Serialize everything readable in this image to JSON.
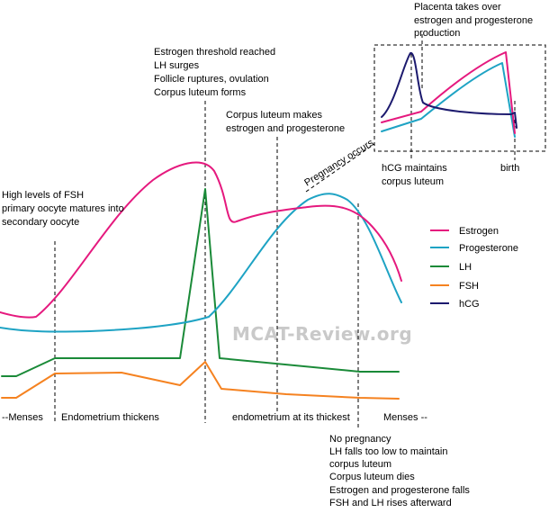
{
  "colors": {
    "estrogen": "#e5197e",
    "progesterone": "#1ea3c4",
    "lh": "#1a8a38",
    "fsh": "#f58220",
    "hcg": "#1c1a6e"
  },
  "annotations": {
    "fsh_high": [
      "High levels of FSH",
      "primary oocyte matures into",
      "secondary oocyte"
    ],
    "ovulation": [
      "Estrogen threshold reached",
      "LH surges",
      "Follicle ruptures, ovulation",
      "Corpus luteum forms"
    ],
    "corpus_luteum": [
      "Corpus luteum makes",
      "estrogen and progesterone"
    ],
    "placenta": [
      "Placenta takes over",
      "estrogen and progesterone",
      "production"
    ],
    "pregnancy_occurs": "Pregnancy occurs",
    "hcg_maintains": [
      "hCG maintains",
      "corpus luteum"
    ],
    "birth": "birth",
    "no_pregnancy": [
      "No pregnancy",
      "LH falls too low to maintain",
      "corpus luteum",
      "Corpus luteum dies",
      "Estrogen and progesterone falls",
      "FSH and LH rises afterward"
    ]
  },
  "phases": {
    "menses_start": "--Menses",
    "endometrium_thickens": "Endometrium thickens",
    "endometrium_thickest": "endometrium at its thickest",
    "menses_end": "Menses --"
  },
  "legend": [
    {
      "key": "estrogen",
      "label": "Estrogen"
    },
    {
      "key": "progesterone",
      "label": "Progesterone"
    },
    {
      "key": "lh",
      "label": "LH"
    },
    {
      "key": "fsh",
      "label": "FSH"
    },
    {
      "key": "hcg",
      "label": "hCG"
    }
  ],
  "watermark": "MCAT-Review.org"
}
